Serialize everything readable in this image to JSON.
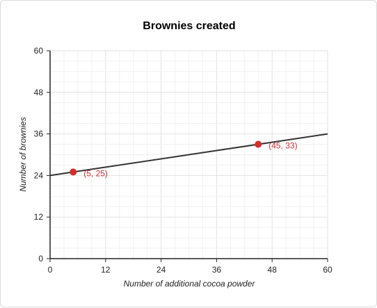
{
  "chart_data": {
    "type": "line",
    "title": "Brownies created",
    "xlabel": "Number of additional cocoa powder",
    "ylabel": "Number of brownies",
    "xlim": [
      0,
      60
    ],
    "ylim": [
      0,
      60
    ],
    "xticks": [
      "0",
      "12",
      "24",
      "36",
      "48",
      "60"
    ],
    "yticks": [
      "0",
      "12",
      "24",
      "36",
      "48",
      "60"
    ],
    "grid": true,
    "line": {
      "x": [
        0,
        60
      ],
      "y": [
        24,
        36
      ],
      "color": "#333333"
    },
    "points": [
      {
        "x": 5,
        "y": 25,
        "label": "(5, 25)"
      },
      {
        "x": 45,
        "y": 33,
        "label": "(45, 33)"
      }
    ],
    "point_color": "#d32f2f"
  }
}
